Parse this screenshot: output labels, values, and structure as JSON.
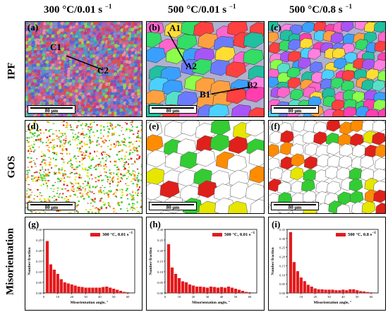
{
  "columns": [
    {
      "title": "300 °C/0.01 s",
      "sup": "−1"
    },
    {
      "title": "500 °C/0.01 s",
      "sup": "−1"
    },
    {
      "title": "500 °C/0.8 s",
      "sup": "−1"
    }
  ],
  "rows": [
    "IPF",
    "GOS",
    "Misorientation"
  ],
  "panels": {
    "a": {
      "label": "(a)",
      "scale": "80 μm",
      "annotations": [
        "C1",
        "C2"
      ]
    },
    "b": {
      "label": "(b)",
      "scale": "80 μm",
      "annotations": [
        "A1",
        "A2",
        "B1",
        "B2"
      ]
    },
    "c": {
      "label": "(c)",
      "scale": "80 μm"
    },
    "d": {
      "label": "(d)",
      "scale": "80 μm"
    },
    "e": {
      "label": "(e)",
      "scale": "80 μm"
    },
    "f": {
      "label": "(f)",
      "scale": "80 μm"
    },
    "g": {
      "label": "(g)"
    },
    "h": {
      "label": "(h)"
    },
    "i": {
      "label": "(i)"
    }
  },
  "colors": {
    "bar": "#e41a1c",
    "grain_green": "#33cc33",
    "grain_orange": "#ff8c00",
    "grain_red": "#e0201a",
    "grain_yellow": "#e6e600"
  },
  "chart_data": [
    {
      "type": "bar",
      "panel": "g",
      "legend": "300 °C, 0.01 s",
      "legend_sup": "−1",
      "xlabel": "Misorientation angle, °",
      "ylabel": "Number fraction",
      "xlim": [
        0,
        65
      ],
      "ylim": [
        0,
        0.3
      ],
      "xticks": [
        0,
        10,
        20,
        30,
        40,
        50,
        60
      ],
      "yticks": [
        0.0,
        0.05,
        0.1,
        0.15,
        0.2,
        0.25,
        0.3
      ],
      "x": [
        2.5,
        5,
        7.5,
        10,
        12.5,
        15,
        17.5,
        20,
        22.5,
        25,
        27.5,
        30,
        32.5,
        35,
        37.5,
        40,
        42.5,
        45,
        47.5,
        50,
        52.5,
        55,
        57.5,
        60
      ],
      "values": [
        0.245,
        0.135,
        0.11,
        0.09,
        0.065,
        0.05,
        0.045,
        0.04,
        0.035,
        0.03,
        0.028,
        0.025,
        0.025,
        0.025,
        0.025,
        0.025,
        0.028,
        0.03,
        0.025,
        0.02,
        0.015,
        0.01,
        0.005,
        0.003
      ]
    },
    {
      "type": "bar",
      "panel": "h",
      "legend": "500 °C, 0.01 s",
      "legend_sup": "−1",
      "xlabel": "Misorientation angle, °",
      "ylabel": "Number fraction",
      "xlim": [
        0,
        65
      ],
      "ylim": [
        0,
        0.3
      ],
      "xticks": [
        0,
        10,
        20,
        30,
        40,
        50,
        60
      ],
      "yticks": [
        0.0,
        0.05,
        0.1,
        0.15,
        0.2,
        0.25,
        0.3
      ],
      "x": [
        2.5,
        5,
        7.5,
        10,
        12.5,
        15,
        17.5,
        20,
        22.5,
        25,
        27.5,
        30,
        32.5,
        35,
        37.5,
        40,
        42.5,
        45,
        47.5,
        50,
        52.5,
        55,
        57.5,
        60
      ],
      "values": [
        0.23,
        0.12,
        0.09,
        0.07,
        0.055,
        0.05,
        0.04,
        0.035,
        0.03,
        0.03,
        0.028,
        0.025,
        0.03,
        0.028,
        0.025,
        0.028,
        0.025,
        0.03,
        0.025,
        0.02,
        0.015,
        0.01,
        0.005,
        0.003
      ]
    },
    {
      "type": "bar",
      "panel": "i",
      "legend": "500 °C, 0.8 s",
      "legend_sup": "−1",
      "xlabel": "Misorientation angle, °",
      "ylabel": "Number fraction",
      "xlim": [
        0,
        65
      ],
      "ylim": [
        0,
        0.35
      ],
      "xticks": [
        0,
        10,
        20,
        30,
        40,
        50,
        60
      ],
      "yticks": [
        0.0,
        0.05,
        0.1,
        0.15,
        0.2,
        0.25,
        0.3,
        0.35
      ],
      "x": [
        2.5,
        5,
        7.5,
        10,
        12.5,
        15,
        17.5,
        20,
        22.5,
        25,
        27.5,
        30,
        32.5,
        35,
        37.5,
        40,
        42.5,
        45,
        47.5,
        50,
        52.5,
        55,
        57.5,
        60
      ],
      "values": [
        0.335,
        0.17,
        0.12,
        0.085,
        0.065,
        0.045,
        0.035,
        0.025,
        0.02,
        0.02,
        0.018,
        0.018,
        0.018,
        0.015,
        0.015,
        0.018,
        0.015,
        0.02,
        0.02,
        0.015,
        0.01,
        0.008,
        0.005,
        0.003
      ]
    }
  ]
}
